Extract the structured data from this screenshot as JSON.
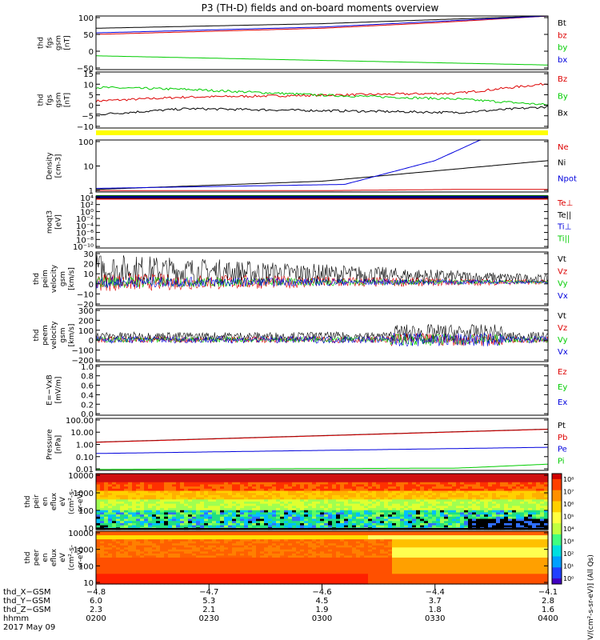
{
  "title": "P3 (TH-D) fields and on-board moments overview",
  "colors": {
    "black": "#000000",
    "red": "#dd0000",
    "green": "#00cc00",
    "blue": "#0000dd",
    "yellow": "#ffff00"
  },
  "chart_data": [
    {
      "type": "line",
      "ylabel": [
        "thd",
        "fgs",
        "gsm",
        "[nT]"
      ],
      "ylim": [
        -75,
        100
      ],
      "yticks": [
        "100",
        "50",
        "0",
        "−50"
      ],
      "legend": [
        "Bt",
        "bz",
        "by",
        "bx"
      ],
      "series": [
        {
          "name": "Bt",
          "x": [
            0.0,
            0.5,
            0.75,
            1.0
          ],
          "values": [
            60,
            75,
            88,
            100
          ]
        },
        {
          "name": "bz",
          "x": [
            0.0,
            0.5,
            0.75,
            1.0
          ],
          "values": [
            40,
            60,
            78,
            100
          ]
        },
        {
          "name": "by",
          "x": [
            0.0,
            0.5,
            1.0
          ],
          "values": [
            -30,
            -45,
            -60
          ]
        },
        {
          "name": "bx",
          "x": [
            0.0,
            0.5,
            1.0
          ],
          "values": [
            45,
            64,
            100
          ]
        }
      ]
    },
    {
      "type": "line",
      "ylabel": [
        "thd",
        "fgs",
        "gsm",
        "[nT]"
      ],
      "ylim": [
        -13,
        16
      ],
      "yticks": [
        "15",
        "10",
        "5",
        "0",
        "−5",
        "−10"
      ],
      "legend": [
        "Bz",
        "By",
        "Bx"
      ],
      "series": [
        {
          "name": "Bz",
          "x": [
            0.0,
            0.2,
            0.5,
            0.8,
            1.0
          ],
          "values": [
            1,
            3,
            4,
            5,
            10
          ]
        },
        {
          "name": "By",
          "x": [
            0.0,
            0.2,
            0.5,
            0.8,
            1.0
          ],
          "values": [
            8,
            7,
            4,
            2,
            -1
          ]
        },
        {
          "name": "Bx",
          "x": [
            0.0,
            0.2,
            0.5,
            0.8,
            1.0
          ],
          "values": [
            -6,
            -3,
            -4,
            -5,
            -2
          ]
        }
      ]
    },
    {
      "type": "line",
      "ylabel": [
        "Density",
        "[cm-3]"
      ],
      "scale": "log",
      "ylim": [
        0.3,
        100
      ],
      "yticks": [
        "100",
        "10",
        "1"
      ],
      "legend": [
        "Ne",
        "Ni",
        "Npot"
      ],
      "series": [
        {
          "name": "Ne",
          "x": [
            0.0,
            0.5,
            0.8,
            1.0
          ],
          "values": [
            0.35,
            0.35,
            0.4,
            0.4
          ]
        },
        {
          "name": "Ni",
          "x": [
            0.0,
            0.5,
            1.0
          ],
          "values": [
            0.4,
            1.0,
            10
          ]
        },
        {
          "name": "Npot",
          "x": [
            0.0,
            0.55,
            0.75,
            0.85
          ],
          "values": [
            0.45,
            0.7,
            10,
            100
          ]
        }
      ]
    },
    {
      "type": "line",
      "ylabel": [
        "moqt3",
        "[eV]"
      ],
      "scale": "log",
      "ylim": [
        1e-10,
        10000.0
      ],
      "yticks": [
        "10⁴",
        "10²",
        "10⁰",
        "10⁻²",
        "10⁻⁴",
        "10⁻⁶",
        "10⁻⁸",
        "10⁻¹⁰"
      ],
      "legend": [
        "Te⊥",
        "Te||",
        "Ti⊥",
        "Ti||"
      ],
      "series": []
    },
    {
      "type": "line",
      "ylabel": [
        "thd",
        "peim",
        "velocity",
        "gsm",
        "[km/s]"
      ],
      "ylim": [
        -25,
        32
      ],
      "yticks": [
        "30",
        "20",
        "10",
        "0",
        "−10",
        "−20"
      ],
      "legend": [
        "Vt",
        "Vz",
        "Vy",
        "Vx"
      ],
      "series": []
    },
    {
      "type": "line",
      "ylabel": [
        "thd",
        "peem",
        "velocity",
        "gsm",
        "[km/s]"
      ],
      "ylim": [
        -220,
        310
      ],
      "yticks": [
        "300",
        "200",
        "100",
        "0",
        "−100",
        "−200"
      ],
      "legend": [
        "Vt",
        "Vz",
        "Vy",
        "Vx"
      ],
      "series": []
    },
    {
      "type": "line",
      "ylabel": [
        "E=−VxB",
        "[mV/m]"
      ],
      "ylim": [
        0,
        1
      ],
      "yticks": [
        "1.0",
        "0.8",
        "0.6",
        "0.4",
        "0.2",
        "0.0"
      ],
      "legend": [
        "Ez",
        "Ey",
        "Ex"
      ],
      "series": []
    },
    {
      "type": "line",
      "ylabel": [
        "Pressure",
        "[nPa]"
      ],
      "scale": "log",
      "ylim": [
        0.01,
        100
      ],
      "yticks": [
        "100.00",
        "10.00",
        "1.00",
        "0.10",
        "0.01"
      ],
      "legend": [
        "Pt",
        "Pb",
        "Pe",
        "Pi"
      ],
      "series": [
        {
          "name": "Pt",
          "x": [
            0.0,
            1.0
          ],
          "values": [
            1.5,
            15
          ]
        },
        {
          "name": "Pb",
          "x": [
            0.0,
            1.0
          ],
          "values": [
            1.45,
            14.5
          ]
        },
        {
          "name": "Pe",
          "x": [
            0.0,
            1.0
          ],
          "values": [
            0.2,
            0.6
          ]
        },
        {
          "name": "Pi",
          "x": [
            0.0,
            0.8,
            1.0
          ],
          "values": [
            0.012,
            0.015,
            0.03
          ]
        }
      ]
    },
    {
      "type": "heatmap",
      "ylabel": [
        "thd",
        "peir",
        "en",
        "eflux",
        "eV",
        "(cm²-s-",
        "sr-eV)"
      ],
      "scale": "log",
      "ylim": [
        5,
        30000
      ],
      "yticks": [
        "10000",
        "1000",
        "100",
        "10"
      ]
    },
    {
      "type": "heatmap",
      "ylabel": [
        "thd",
        "peer",
        "en",
        "eflux",
        "eV",
        "(cm²-s-",
        "sr-eV)"
      ],
      "scale": "log",
      "ylim": [
        5,
        30000
      ],
      "yticks": [
        "10000",
        "1000",
        "100",
        "10"
      ]
    }
  ],
  "colorbar": {
    "label": "[eV/(cm²-s-sr-eV)] (All Qs)",
    "ticks": [
      "10⁸",
      "10⁷",
      "10⁶",
      "10⁵",
      "10⁴",
      "10³",
      "10²",
      "10¹",
      "10⁰"
    ]
  },
  "xaxis": {
    "rows": [
      {
        "label": "thd_X−GSM",
        "values": [
          "−4.8",
          "−4.7",
          "−4.6",
          "−4.4",
          "−4.1"
        ]
      },
      {
        "label": "thd_Y−GSM",
        "values": [
          "6.0",
          "5.3",
          "4.5",
          "3.7",
          "2.8"
        ]
      },
      {
        "label": "thd_Z−GSM",
        "values": [
          "2.3",
          "2.1",
          "1.9",
          "1.8",
          "1.6"
        ]
      },
      {
        "label": "hhmm",
        "values": [
          "0200",
          "0230",
          "0300",
          "0330",
          "0400"
        ]
      }
    ],
    "date": "2017 May 09"
  }
}
